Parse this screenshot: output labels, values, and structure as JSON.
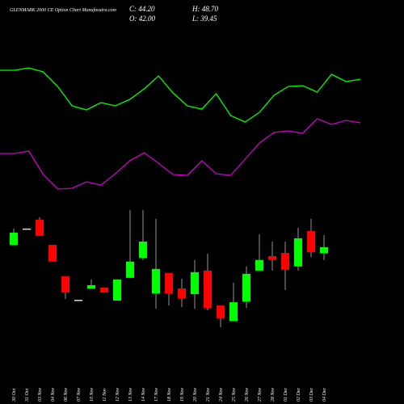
{
  "chart_data": [
    {
      "type": "line",
      "title": "GLENMARK 2000 CE Option Chart Munafasutra.com",
      "ylim": [
        0,
        190
      ],
      "series": [
        {
          "color": "#00ff00",
          "values": [
            163,
            163,
            166,
            161,
            143,
            119,
            114,
            123,
            119,
            127,
            140,
            156,
            135,
            119,
            115,
            134,
            107,
            99,
            111,
            132,
            143,
            144,
            136,
            158,
            149,
            152
          ]
        },
        {
          "color": "#cc00cc",
          "values": [
            60,
            60,
            63,
            34,
            16,
            17,
            25,
            21,
            35,
            51,
            61,
            48,
            34,
            33,
            51,
            35,
            33,
            53,
            73,
            86,
            88,
            85,
            103,
            96,
            101,
            98
          ]
        }
      ]
    },
    {
      "type": "candlestick",
      "stats": [
        "C: 44.20",
        "H: 48.70",
        "O: 42.00",
        "L: 39.45"
      ],
      "ylim": [
        10.2,
        60.9
      ],
      "up_color": "#00ff00",
      "down_color": "#ff0000",
      "doji_color": "#dddddd",
      "categories": [
        "30 Oct",
        "31 Oct",
        "03 Nov",
        "04 Nov",
        "06 Nov",
        "07 Nov",
        "10 Nov",
        "11 Nov",
        "12 Nov",
        "13 Nov",
        "14 Nov",
        "17 Nov",
        "18 Nov",
        "19 Nov",
        "20 Nov",
        "21 Nov",
        "24 Nov",
        "25 Nov",
        "26 Nov",
        "27 Nov",
        "28 Nov",
        "01 Dec",
        "02 Dec",
        "03 Dec",
        "04 Dec"
      ],
      "open": [
        45.1,
        51.1,
        54.4,
        45.1,
        33.5,
        24.8,
        29.0,
        29.3,
        24.5,
        32.9,
        40.3,
        27.2,
        34.7,
        29.0,
        26.9,
        35.6,
        22.7,
        17.0,
        24.2,
        35.6,
        40.9,
        42.1,
        37.1,
        50.2,
        42.0
      ],
      "close": [
        49.6,
        51.1,
        48.4,
        38.9,
        27.5,
        24.8,
        30.2,
        27.5,
        32.3,
        38.9,
        46.3,
        36.2,
        27.2,
        25.4,
        35.0,
        21.8,
        17.9,
        23.9,
        34.4,
        39.5,
        39.5,
        35.9,
        47.5,
        42.4,
        44.2
      ],
      "high": [
        51.1,
        51.1,
        55.3,
        45.1,
        33.5,
        24.8,
        32.3,
        29.3,
        32.3,
        58.0,
        58.0,
        54.7,
        34.7,
        32.6,
        39.5,
        41.8,
        22.7,
        31.1,
        37.1,
        49.0,
        46.3,
        46.3,
        51.4,
        54.7,
        48.7
      ],
      "low": [
        45.1,
        51.1,
        48.4,
        38.9,
        25.1,
        24.8,
        29.0,
        27.5,
        24.5,
        32.9,
        39.45,
        21.5,
        22.7,
        22.1,
        21.5,
        20.9,
        14.7,
        17.0,
        21.8,
        35.6,
        35.6,
        28.4,
        35.6,
        40.6,
        39.45
      ]
    }
  ]
}
